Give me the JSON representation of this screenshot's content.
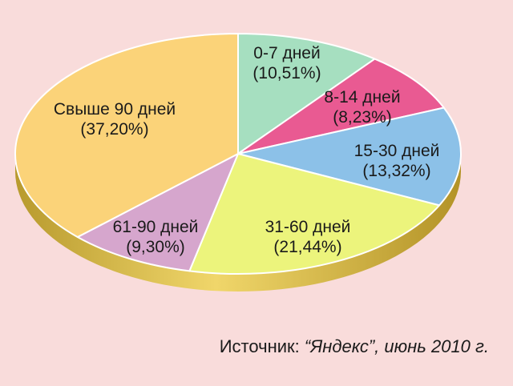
{
  "chart_data": {
    "type": "pie",
    "title": "",
    "slices": [
      {
        "label": "0-7 дней",
        "value_text": "(10,51%)",
        "value": 10.51,
        "color": "#a6dfc0"
      },
      {
        "label": "8-14 дней",
        "value_text": "(8,23%)",
        "value": 8.23,
        "color": "#e95a92"
      },
      {
        "label": "15-30 дней",
        "value_text": "(13,32%)",
        "value": 13.32,
        "color": "#8cc1e8"
      },
      {
        "label": "31-60 дней",
        "value_text": "(21,44%)",
        "value": 21.44,
        "color": "#ecf47c"
      },
      {
        "label": "61-90 дней",
        "value_text": "(9,30%)",
        "value": 9.3,
        "color": "#d6a6cd"
      },
      {
        "label": "Свыше 90 дней",
        "value_text": "(37,20%)",
        "value": 37.2,
        "color": "#fbd379"
      }
    ],
    "rim_color": "#e2c447",
    "background": "#f9dcdb"
  },
  "source": {
    "prefix": "Источник: ",
    "rest": "“Яндекс”, июнь 2010 г."
  }
}
